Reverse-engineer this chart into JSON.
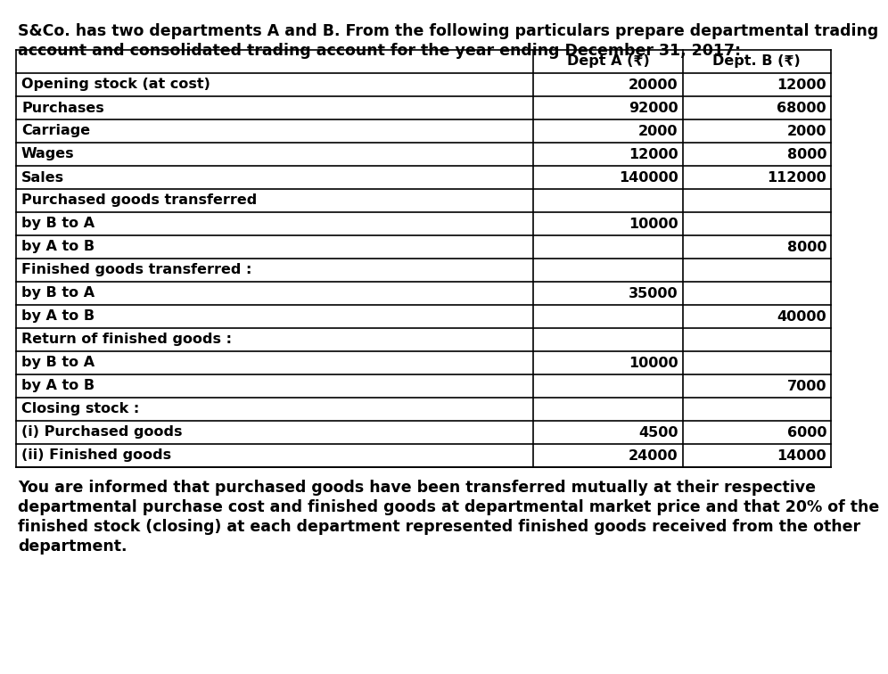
{
  "header_line1": "S&Co. has two departments A and B. From the following particulars prepare departmental trading",
  "header_line2": "account and consolidated trading account for the year ending December 31, 2017:",
  "col1_header": "Dept A (₹)",
  "col2_header": "Dept. B (₹)",
  "rows": [
    {
      "label": "Opening stock (at cost)",
      "a": "20000",
      "b": "12000"
    },
    {
      "label": "Purchases",
      "a": "92000",
      "b": "68000"
    },
    {
      "label": "Carriage",
      "a": "2000",
      "b": "2000"
    },
    {
      "label": "Wages",
      "a": "12000",
      "b": "8000"
    },
    {
      "label": "Sales",
      "a": "140000",
      "b": "112000"
    },
    {
      "label": "Purchased goods transferred",
      "a": "",
      "b": ""
    },
    {
      "label": "by B to A",
      "a": "10000",
      "b": ""
    },
    {
      "label": "by A to B",
      "a": "",
      "b": "8000"
    },
    {
      "label": "Finished goods transferred :",
      "a": "",
      "b": ""
    },
    {
      "label": "by B to A",
      "a": "35000",
      "b": ""
    },
    {
      "label": "by A to B",
      "a": "",
      "b": "40000"
    },
    {
      "label": "Return of finished goods :",
      "a": "",
      "b": ""
    },
    {
      "label": "by B to A",
      "a": "10000",
      "b": ""
    },
    {
      "label": "by A to B",
      "a": "",
      "b": "7000"
    },
    {
      "label": "Closing stock :",
      "a": "",
      "b": ""
    },
    {
      "label": "(i) Purchased goods",
      "a": "4500",
      "b": "6000"
    },
    {
      "label": "(ii) Finished goods",
      "a": "24000",
      "b": "14000"
    }
  ],
  "footer_lines": [
    "You are informed that purchased goods have been transferred mutually at their respective",
    "departmental purchase cost and finished goods at departmental market price and that 20% of the",
    "finished stock (closing) at each department represented finished goods received from the other",
    "department."
  ],
  "bg_color": "#ffffff",
  "border_color": "#000000",
  "header_font_size": 12.5,
  "table_font_size": 11.5,
  "footer_font_size": 12.5,
  "col_split1": 0.635,
  "col_split2": 0.818
}
